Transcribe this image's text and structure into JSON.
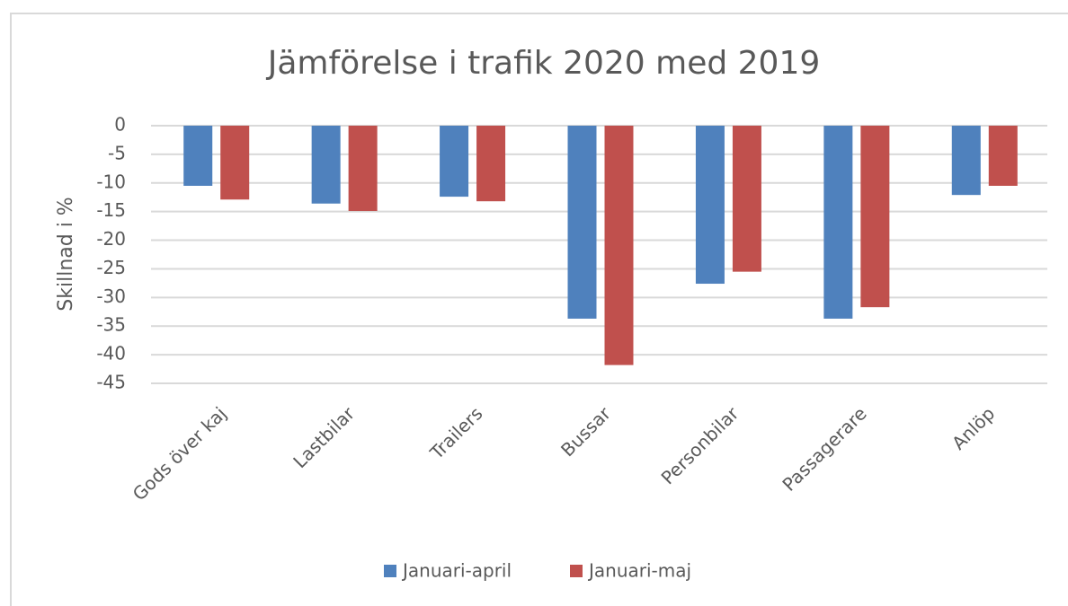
{
  "chart_data": {
    "type": "bar",
    "title": "Jämförelse i trafik 2020 med 2019",
    "y_label": "Skillnad i %",
    "categories": [
      "Gods över kaj",
      "Lastbilar",
      "Trailers",
      "Bussar",
      "Personbilar",
      "Passagerare",
      "Anlöp"
    ],
    "series": [
      {
        "name": "Januari-april",
        "color": "#4f81bd",
        "values": [
          -10.5,
          -13.6,
          -12.4,
          -33.7,
          -27.6,
          -33.7,
          -12.1
        ]
      },
      {
        "name": "Januari-maj",
        "color": "#c0504d",
        "values": [
          -12.9,
          -14.9,
          -13.2,
          -41.8,
          -25.5,
          -31.7,
          -10.5
        ]
      }
    ],
    "ylim": [
      -45,
      0
    ],
    "yticks": [
      0,
      -5,
      -10,
      -15,
      -20,
      -25,
      -30,
      -35,
      -40,
      -45
    ],
    "grid": true,
    "legend": "bottom"
  }
}
